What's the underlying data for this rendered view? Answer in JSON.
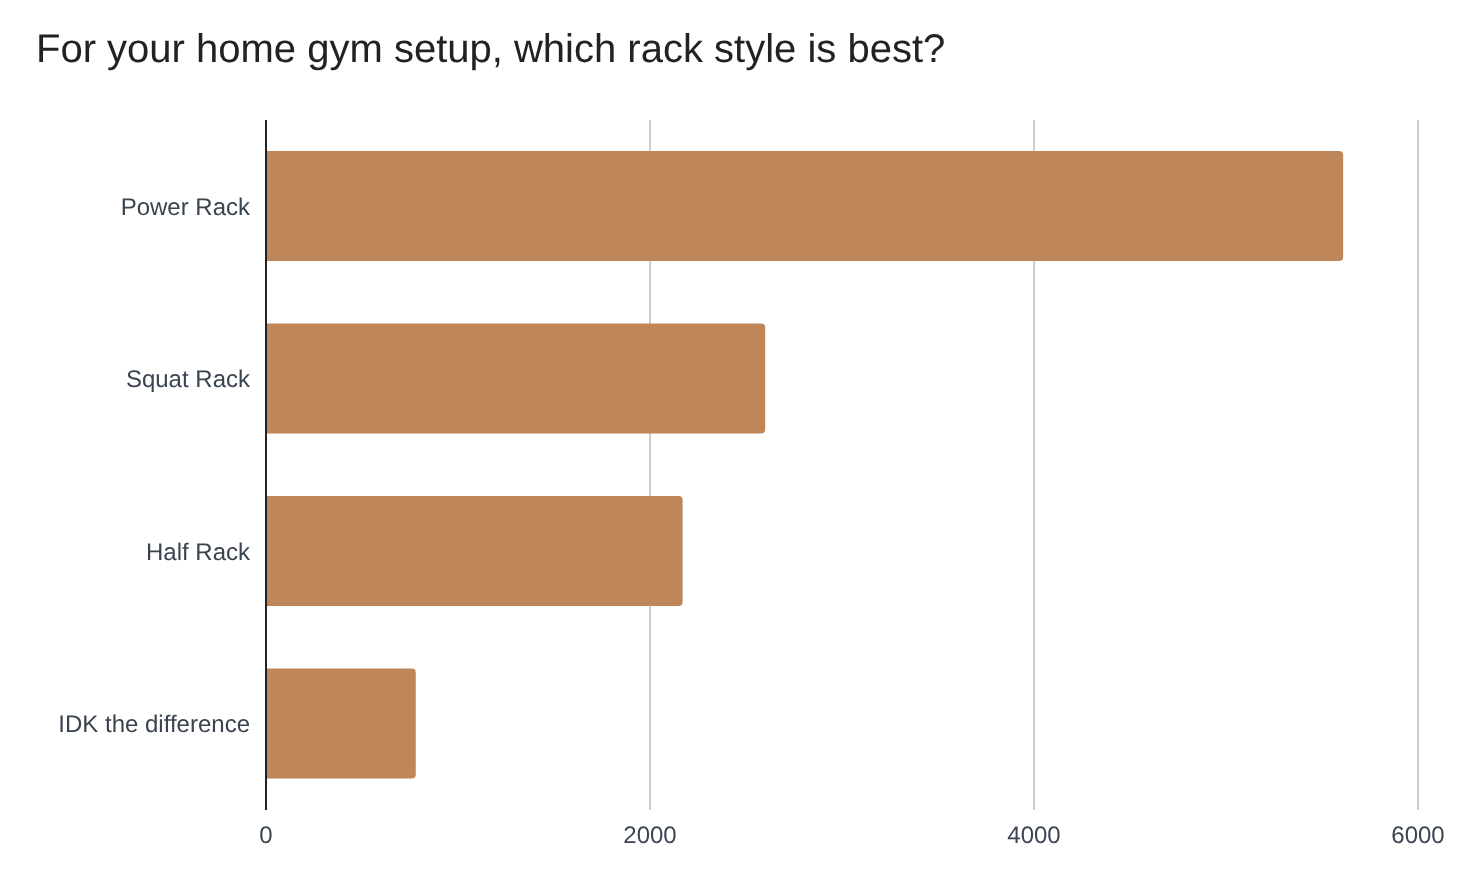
{
  "chart_data": {
    "type": "bar",
    "orientation": "horizontal",
    "title": "For your home gym setup, which rack style is best?",
    "categories": [
      "Power Rack",
      "Squat Rack",
      "Half Rack",
      "IDK the difference"
    ],
    "values": [
      5610,
      2600,
      2170,
      780
    ],
    "color": "#be8659",
    "xlim": [
      0,
      6000
    ],
    "xticks": [
      0,
      2000,
      4000,
      6000
    ],
    "grid": "x",
    "legend": false
  }
}
